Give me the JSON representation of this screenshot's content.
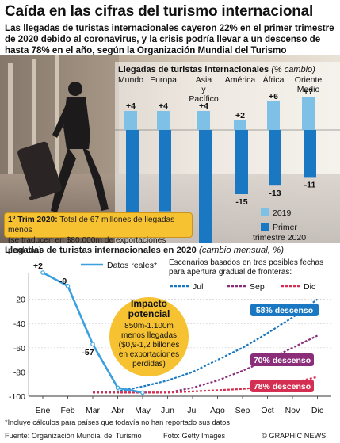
{
  "header": {
    "title": "Caída en las cifras del turismo internacional",
    "subtitle_lines": [
      "Las llegadas de turistas internacionales cayeron 22% en el primer trimestre",
      "de 2020 debido al coronavirus, y la crisis podría llevar a un descenso de",
      "hasta 78% en el año, según la Organización Mundial del Turismo"
    ]
  },
  "note": {
    "bold": "1º Trim 2020:",
    "line1": "Total de 67 millones de llegadas menos",
    "line2": "(se traducen en $80.000m de exportaciones perdidas)"
  },
  "colors": {
    "bar_2019": "#7fc0e6",
    "bar_2020": "#1a78c2",
    "actual_line": "#3aa0e0",
    "jul": "#1a78c2",
    "sep": "#8a2e7a",
    "dic": "#d42f52",
    "impact_fill": "#f6c232",
    "note_fill": "#f6c232"
  },
  "chart_data": [
    {
      "type": "bar",
      "title": "Llegadas de turistas internacionales",
      "title_unit": "(% cambio)",
      "categories": [
        [
          "Mundo"
        ],
        [
          "Europa"
        ],
        [
          "Asia",
          "y",
          "Pacífico"
        ],
        [
          "América"
        ],
        [
          "África"
        ],
        [
          "Oriente",
          "Medio"
        ]
      ],
      "series": [
        {
          "name": "2019",
          "values": [
            4,
            4,
            4,
            2,
            6,
            7
          ]
        },
        {
          "name": "Primer trimestre 2020",
          "values": [
            -22,
            -19,
            -35,
            -15,
            -13,
            -11
          ]
        }
      ],
      "labels_2019": [
        "+4",
        "+4",
        "+4",
        "+2",
        "+6",
        "+7"
      ],
      "labels_2020": [
        "-22",
        "-19",
        "-35",
        "-15",
        "-13",
        "-11"
      ],
      "legend": [
        "2019",
        "Primer",
        "trimestre 2020"
      ],
      "legend_position": "bottom-right"
    },
    {
      "type": "line",
      "title": "Llegadas de turistas internacionales en 2020",
      "title_unit": "(cambio mensual, %)",
      "x": [
        "Ene",
        "Feb",
        "Mar",
        "Abr",
        "May",
        "Jun",
        "Jul",
        "Ago",
        "Sep",
        "Oct",
        "Nov",
        "Dic"
      ],
      "yticks": [
        "-20",
        "-40",
        "-60",
        "-80",
        "-100"
      ],
      "ylim": [
        -100,
        2
      ],
      "actual": {
        "name": "Datos reales*",
        "values": [
          2,
          -9,
          -57,
          -93,
          -97
        ]
      },
      "actual_labels": [
        "+2",
        "-9",
        "-57"
      ],
      "scenarios_header": [
        "Escenarios basados en tres posibles fechas",
        "para apertura gradual de fronteras:"
      ],
      "scenarios": [
        {
          "name": "Jul",
          "label": "58% descenso",
          "values": [
            -97,
            -96,
            -92,
            -87,
            -80,
            -70,
            -60,
            -48,
            -35,
            -20
          ]
        },
        {
          "name": "Sep",
          "label": "70% descenso",
          "values": [
            -97,
            -97,
            -97,
            -97,
            -93,
            -87,
            -79,
            -70,
            -60,
            -50
          ]
        },
        {
          "name": "Dic",
          "label": "78% descenso",
          "values": [
            -97,
            -97,
            -97,
            -97,
            -96,
            -95,
            -94,
            -92,
            -89,
            -84
          ]
        }
      ],
      "impact": {
        "title_lines": [
          "Impacto",
          "potencial"
        ],
        "body_lines": [
          "850m-1.100m",
          "menos llegadas",
          "($0,9-1,2 billones",
          "en exportaciones",
          "perdidas)"
        ]
      }
    }
  ],
  "footer": {
    "footnote": "*Incluye cálculos para países que todavía no han reportado sus datos",
    "source": "Fuente: Organización Mundial del Turismo",
    "photo": "Foto: Getty Images",
    "brand": "© GRAPHIC NEWS"
  }
}
